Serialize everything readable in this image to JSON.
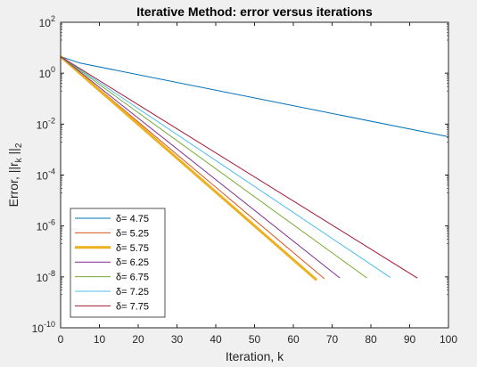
{
  "chart_data": {
    "type": "line",
    "title": "Iterative Method: error versus iterations",
    "xlabel": "Iteration, k",
    "ylabel": "Error, ||r",
    "ylabel_sub": "k",
    "ylabel_tail": " ||",
    "ylabel_sub2": "2",
    "xlim": [
      0,
      100
    ],
    "ylim_log10": [
      -10,
      2
    ],
    "yscale": "log",
    "grid": false,
    "legend_position": "bottom-left",
    "x_ticks": [
      "0",
      "10",
      "20",
      "30",
      "40",
      "50",
      "60",
      "70",
      "80",
      "90",
      "100"
    ],
    "y_ticks": [
      {
        "base": "10",
        "exp": "2"
      },
      {
        "base": "10",
        "exp": "0"
      },
      {
        "base": "10",
        "exp": "-2"
      },
      {
        "base": "10",
        "exp": "-4"
      },
      {
        "base": "10",
        "exp": "-6"
      },
      {
        "base": "10",
        "exp": "-8"
      },
      {
        "base": "10",
        "exp": "-10"
      }
    ],
    "series": [
      {
        "name": "δ= 4.75",
        "color": "#0072bd",
        "width": 1,
        "x": [
          0,
          5,
          100
        ],
        "y": [
          4.5,
          2.5,
          0.0032
        ]
      },
      {
        "name": "δ= 5.25",
        "color": "#d95319",
        "width": 1,
        "x": [
          0,
          68
        ],
        "y": [
          4.5,
          8.5e-09
        ]
      },
      {
        "name": "δ= 5.75",
        "color": "#edb120",
        "width": 3,
        "x": [
          0,
          66
        ],
        "y": [
          4.5,
          7.5e-09
        ]
      },
      {
        "name": "δ= 6.25",
        "color": "#7e2f8e",
        "width": 1,
        "x": [
          0,
          72
        ],
        "y": [
          4.5,
          9e-09
        ]
      },
      {
        "name": "δ= 6.75",
        "color": "#77ac30",
        "width": 1,
        "x": [
          0,
          79
        ],
        "y": [
          4.5,
          9e-09
        ]
      },
      {
        "name": "δ= 7.25",
        "color": "#4dbeee",
        "width": 1,
        "x": [
          0,
          85
        ],
        "y": [
          4.5,
          9.5e-09
        ]
      },
      {
        "name": "δ= 7.75",
        "color": "#a2142f",
        "width": 1,
        "x": [
          0,
          92
        ],
        "y": [
          4.5,
          9e-09
        ]
      }
    ]
  }
}
